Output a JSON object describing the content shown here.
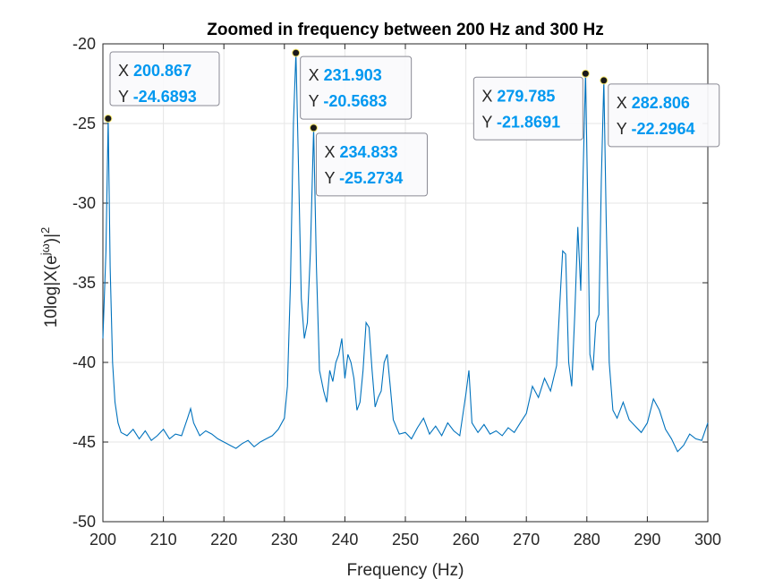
{
  "chart_data": {
    "type": "line",
    "title": "Zoomed in frequency between 200 Hz and 300 Hz",
    "xlabel": "Frequency (Hz)",
    "ylabel_main": "10log|X(e",
    "ylabel_sup": "jω",
    "ylabel_close": ")|",
    "ylabel_pow": "2",
    "xlim": [
      200,
      300
    ],
    "ylim": [
      -50,
      -20
    ],
    "xticks": [
      200,
      210,
      220,
      230,
      240,
      250,
      260,
      270,
      280,
      290,
      300
    ],
    "yticks": [
      -50,
      -45,
      -40,
      -35,
      -30,
      -25,
      -20
    ],
    "xtick_labels": [
      "200",
      "210",
      "220",
      "230",
      "240",
      "250",
      "260",
      "270",
      "280",
      "290",
      "300"
    ],
    "ytick_labels": [
      "-50",
      "-45",
      "-40",
      "-35",
      "-30",
      "-25",
      "-20"
    ],
    "grid": true,
    "series": [
      {
        "color": "#0072BD",
        "x": [
          200.0,
          200.5,
          200.867,
          201.2,
          201.6,
          202.0,
          202.5,
          203.0,
          204.0,
          205.0,
          206.0,
          207.0,
          208.0,
          209.0,
          210.0,
          211.0,
          212.0,
          213.0,
          214.0,
          214.5,
          215.0,
          216.0,
          217.0,
          218.0,
          219.0,
          220.0,
          221.0,
          222.0,
          223.0,
          224.0,
          225.0,
          226.0,
          227.0,
          228.0,
          229.0,
          230.0,
          230.5,
          231.0,
          231.5,
          231.903,
          232.3,
          232.8,
          233.3,
          233.8,
          234.3,
          234.833,
          235.3,
          235.8,
          236.5,
          237.0,
          237.5,
          238.0,
          238.5,
          239.0,
          239.5,
          240.0,
          240.5,
          241.0,
          241.5,
          242.0,
          242.5,
          243.0,
          243.5,
          244.0,
          244.5,
          245.0,
          245.5,
          246.0,
          246.5,
          247.0,
          247.5,
          248.0,
          249.0,
          250.0,
          251.0,
          252.0,
          253.0,
          254.0,
          255.0,
          256.0,
          257.0,
          258.0,
          259.0,
          260.0,
          260.5,
          261.0,
          262.0,
          263.0,
          264.0,
          265.0,
          266.0,
          267.0,
          268.0,
          269.0,
          270.0,
          271.0,
          272.0,
          273.0,
          274.0,
          275.0,
          275.5,
          276.0,
          276.5,
          277.0,
          277.5,
          278.0,
          278.5,
          279.0,
          279.4,
          279.785,
          280.1,
          280.5,
          281.0,
          281.5,
          282.0,
          282.4,
          282.806,
          283.2,
          283.7,
          284.3,
          285.0,
          286.0,
          287.0,
          288.0,
          289.0,
          290.0,
          291.0,
          292.0,
          293.0,
          294.0,
          295.0,
          296.0,
          297.0,
          298.0,
          299.0,
          300.0
        ],
        "y": [
          -38.5,
          -33.0,
          -24.6893,
          -34.0,
          -40.0,
          -42.5,
          -43.8,
          -44.4,
          -44.6,
          -44.2,
          -44.8,
          -44.3,
          -44.9,
          -44.6,
          -44.2,
          -44.8,
          -44.5,
          -44.6,
          -43.5,
          -42.9,
          -43.8,
          -44.6,
          -44.3,
          -44.5,
          -44.8,
          -45.0,
          -45.2,
          -45.4,
          -45.1,
          -44.9,
          -45.3,
          -45.0,
          -44.8,
          -44.6,
          -44.2,
          -43.5,
          -41.5,
          -35.0,
          -25.0,
          -20.5683,
          -27.0,
          -36.0,
          -38.5,
          -37.5,
          -33.0,
          -25.2734,
          -34.0,
          -40.5,
          -41.8,
          -42.5,
          -40.5,
          -41.2,
          -40.0,
          -39.5,
          -38.5,
          -41.0,
          -39.5,
          -40.0,
          -41.0,
          -43.0,
          -42.5,
          -40.5,
          -37.5,
          -37.8,
          -40.5,
          -42.8,
          -42.2,
          -41.8,
          -40.0,
          -39.5,
          -41.5,
          -43.6,
          -44.5,
          -44.4,
          -44.8,
          -44.1,
          -43.5,
          -44.5,
          -44.0,
          -44.6,
          -43.8,
          -44.3,
          -44.6,
          -42.0,
          -40.5,
          -43.8,
          -44.4,
          -43.9,
          -44.5,
          -44.3,
          -44.6,
          -44.1,
          -44.4,
          -43.8,
          -43.2,
          -41.5,
          -42.2,
          -41.0,
          -41.8,
          -40.2,
          -36.5,
          -33.0,
          -33.2,
          -40.0,
          -41.5,
          -37.0,
          -31.5,
          -35.5,
          -28.0,
          -21.8691,
          -29.0,
          -39.5,
          -40.5,
          -37.5,
          -37.0,
          -28.5,
          -22.2964,
          -31.0,
          -40.0,
          -43.0,
          -43.5,
          -42.5,
          -43.6,
          -44.0,
          -44.4,
          -43.8,
          -42.3,
          -43.0,
          -44.2,
          -44.8,
          -45.6,
          -45.2,
          -44.5,
          -44.8,
          -44.9,
          -43.8
        ]
      }
    ],
    "datatips": [
      {
        "x": 200.867,
        "y": -24.6893,
        "x_label": "X",
        "y_label": "Y",
        "x_text": "200.867",
        "y_text": "-24.6893"
      },
      {
        "x": 231.903,
        "y": -20.5683,
        "x_label": "X",
        "y_label": "Y",
        "x_text": "231.903",
        "y_text": "-20.5683"
      },
      {
        "x": 234.833,
        "y": -25.2734,
        "x_label": "X",
        "y_label": "Y",
        "x_text": "234.833",
        "y_text": "-25.2734"
      },
      {
        "x": 279.785,
        "y": -21.8691,
        "x_label": "X",
        "y_label": "Y",
        "x_text": "279.785",
        "y_text": "-21.8691"
      },
      {
        "x": 282.806,
        "y": -22.2964,
        "x_label": "X",
        "y_label": "Y",
        "x_text": "282.806",
        "y_text": "-22.2964"
      }
    ]
  },
  "colors": {
    "line": "#0072BD",
    "datatip_value": "#0098F0",
    "datatip_label": "#262626",
    "grid": "#e6e6e6",
    "axis": "#262626",
    "marker": "#1a1a1a"
  }
}
